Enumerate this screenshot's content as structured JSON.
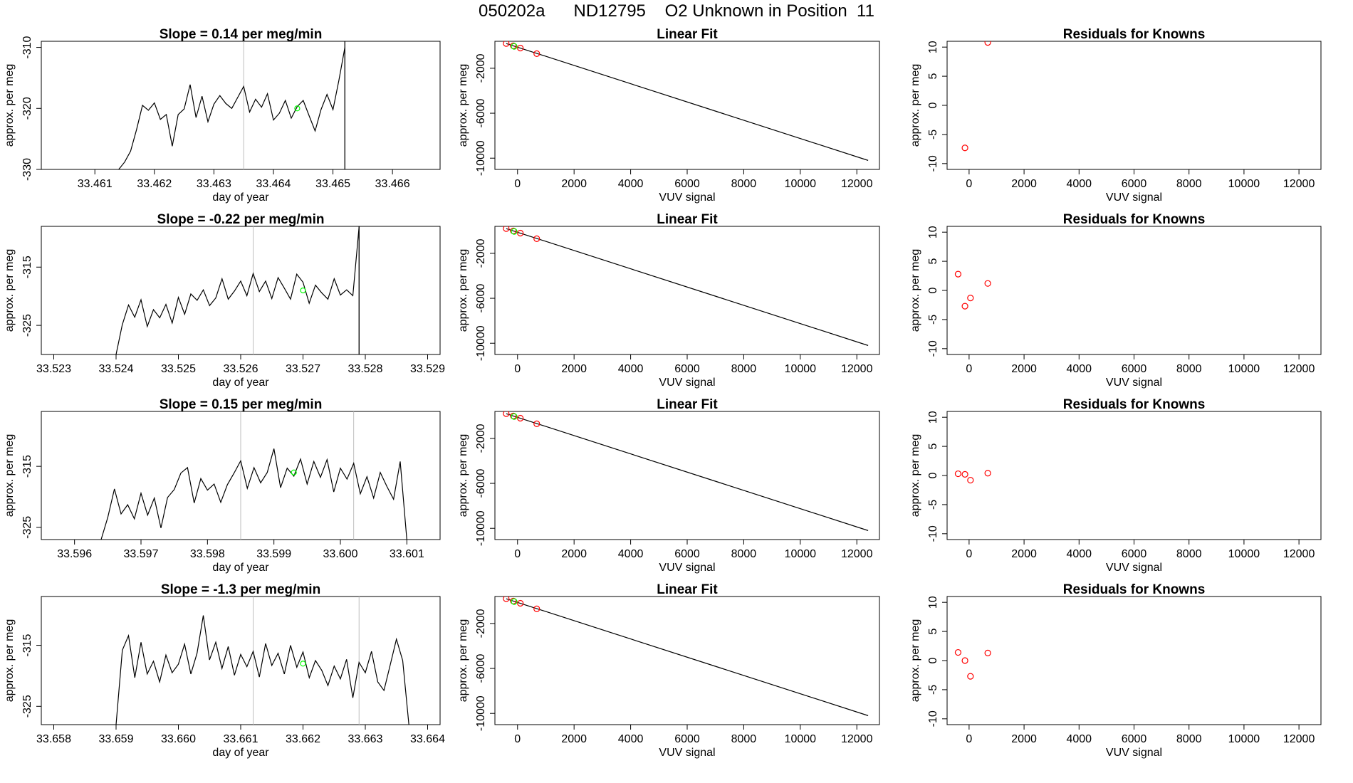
{
  "page_title": {
    "run": "050202a",
    "tank": "ND12795",
    "description": "O2 Unknown in Position  11"
  },
  "colors": {
    "line": "#000000",
    "vline": "#bebebe",
    "green_point": "#00ff00",
    "known_point": "#ff0000",
    "axis": "#000000"
  },
  "chart_data": [
    {
      "row": 0,
      "type": "line",
      "title": "Slope =  0.14  per meg/min",
      "xlabel": "day of year",
      "ylabel": "approx. per meg",
      "xlim": [
        33.4601,
        33.4668
      ],
      "ylim": [
        -330,
        -309
      ],
      "xticks": [
        33.461,
        33.462,
        33.463,
        33.464,
        33.465,
        33.466
      ],
      "xtick_labels": [
        "33.461",
        "33.462",
        "33.463",
        "33.464",
        "33.465",
        "33.466"
      ],
      "yticks": [
        -330,
        -320,
        -310
      ],
      "ytick_labels": [
        "-330",
        "-320",
        "-310"
      ],
      "gray_vlines": [
        33.4635
      ],
      "black_vlines": [
        33.4652
      ],
      "green_point": {
        "x": 33.4644,
        "y": -320
      },
      "series": [
        {
          "name": "signal",
          "x": [
            33.4614,
            33.4615,
            33.4616,
            33.4617,
            33.4618,
            33.4619,
            33.462,
            33.4621,
            33.4622,
            33.4623,
            33.4624,
            33.4625,
            33.4626,
            33.4627,
            33.4628,
            33.4629,
            33.463,
            33.4631,
            33.4632,
            33.4633,
            33.4634,
            33.4635,
            33.4636,
            33.4637,
            33.4638,
            33.4639,
            33.464,
            33.4641,
            33.4642,
            33.4643,
            33.4644,
            33.4645,
            33.4646,
            33.4647,
            33.4648,
            33.4649,
            33.465,
            33.4651,
            33.4652
          ],
          "values": [
            -330.0,
            -328.8,
            -327.0,
            -323.5,
            -319.5,
            -320.3,
            -319.1,
            -321.8,
            -321.0,
            -326.2,
            -321.0,
            -320.1,
            -316.1,
            -321.5,
            -318.0,
            -322.2,
            -319.3,
            -317.9,
            -319.2,
            -320.0,
            -318.2,
            -316.4,
            -320.6,
            -318.5,
            -319.8,
            -317.6,
            -321.9,
            -320.8,
            -318.7,
            -321.6,
            -319.7,
            -318.7,
            -321.2,
            -323.7,
            -320.2,
            -317.7,
            -320.2,
            -315.4,
            -310.0
          ]
        }
      ]
    },
    {
      "row": 0,
      "type": "line",
      "title": "Linear Fit",
      "xlabel": "VUV signal",
      "ylabel": "approx. per meg",
      "xlim": [
        -800,
        12800
      ],
      "ylim": [
        -11000,
        400
      ],
      "xticks": [
        0,
        2000,
        4000,
        6000,
        8000,
        10000,
        12000
      ],
      "xtick_labels": [
        "0",
        "2000",
        "4000",
        "6000",
        "8000",
        "10000",
        "12000"
      ],
      "yticks": [
        -10000,
        -6000,
        -2000
      ],
      "ytick_labels": [
        "-10000",
        "-6000",
        "-2000"
      ],
      "fit_line": {
        "x": [
          -400,
          12400
        ],
        "y": [
          200,
          -10200
        ]
      },
      "known_points": [
        {
          "x": -400,
          "y": 200
        },
        {
          "x": -150,
          "y": 0
        },
        {
          "x": 100,
          "y": -200
        },
        {
          "x": 680,
          "y": -700
        }
      ],
      "green_points": [
        {
          "x": -120,
          "y": -50
        }
      ]
    },
    {
      "row": 0,
      "type": "scatter",
      "title": "Residuals for Knowns",
      "xlabel": "VUV signal",
      "ylabel": "approx. per meg",
      "xlim": [
        -800,
        12800
      ],
      "ylim": [
        -11,
        11
      ],
      "xticks": [
        0,
        2000,
        4000,
        6000,
        8000,
        10000,
        12000
      ],
      "xtick_labels": [
        "0",
        "2000",
        "4000",
        "6000",
        "8000",
        "10000",
        "12000"
      ],
      "yticks": [
        -10,
        -5,
        0,
        5,
        10
      ],
      "ytick_labels": [
        "-10",
        "-5",
        "0",
        "5",
        "10"
      ],
      "points": [
        {
          "x": -150,
          "y": -7.3
        },
        {
          "x": 680,
          "y": 10.8
        }
      ]
    },
    {
      "row": 1,
      "type": "line",
      "title": "Slope =  -0.22  per meg/min",
      "xlabel": "day of year",
      "ylabel": "approx. per meg",
      "xlim": [
        33.5228,
        33.5292
      ],
      "ylim": [
        -330,
        -308
      ],
      "xticks": [
        33.523,
        33.524,
        33.525,
        33.526,
        33.527,
        33.528,
        33.529
      ],
      "xtick_labels": [
        "33.523",
        "33.524",
        "33.525",
        "33.526",
        "33.527",
        "33.528",
        "33.529"
      ],
      "yticks": [
        -325,
        -315
      ],
      "ytick_labels": [
        "-325",
        "-315"
      ],
      "gray_vlines": [
        33.5262
      ],
      "black_vlines": [
        33.5279
      ],
      "green_point": {
        "x": 33.527,
        "y": -319
      },
      "series": [
        {
          "name": "signal",
          "x": [
            33.524,
            33.5241,
            33.5242,
            33.5243,
            33.5244,
            33.5245,
            33.5246,
            33.5247,
            33.5248,
            33.5249,
            33.525,
            33.5251,
            33.5252,
            33.5253,
            33.5254,
            33.5255,
            33.5256,
            33.5257,
            33.5258,
            33.5259,
            33.526,
            33.5261,
            33.5262,
            33.5263,
            33.5264,
            33.5265,
            33.5266,
            33.5267,
            33.5268,
            33.5269,
            33.527,
            33.5271,
            33.5272,
            33.5273,
            33.5274,
            33.5275,
            33.5276,
            33.5277,
            33.5278,
            33.5279
          ],
          "values": [
            -330.0,
            -324.9,
            -321.5,
            -323.6,
            -320.6,
            -325.2,
            -322.3,
            -323.7,
            -321.4,
            -324.6,
            -320.2,
            -323.1,
            -319.6,
            -320.7,
            -318.9,
            -321.6,
            -320.3,
            -317.0,
            -320.5,
            -319.1,
            -317.4,
            -319.9,
            -316.1,
            -319.2,
            -317.4,
            -320.4,
            -316.8,
            -318.6,
            -320.5,
            -316.2,
            -317.6,
            -321.2,
            -318.1,
            -319.4,
            -320.5,
            -317.0,
            -319.8,
            -318.9,
            -319.9,
            -308.0
          ]
        }
      ]
    },
    {
      "row": 1,
      "type": "line",
      "title": "Linear Fit",
      "xlabel": "VUV signal",
      "ylabel": "approx. per meg",
      "xlim": [
        -800,
        12800
      ],
      "ylim": [
        -11000,
        400
      ],
      "xticks": [
        0,
        2000,
        4000,
        6000,
        8000,
        10000,
        12000
      ],
      "xtick_labels": [
        "0",
        "2000",
        "4000",
        "6000",
        "8000",
        "10000",
        "12000"
      ],
      "yticks": [
        -10000,
        -6000,
        -2000
      ],
      "ytick_labels": [
        "-10000",
        "-6000",
        "-2000"
      ],
      "fit_line": {
        "x": [
          -400,
          12400
        ],
        "y": [
          200,
          -10200
        ]
      },
      "known_points": [
        {
          "x": -400,
          "y": 200
        },
        {
          "x": -150,
          "y": 0
        },
        {
          "x": 100,
          "y": -200
        },
        {
          "x": 680,
          "y": -700
        }
      ],
      "green_points": [
        {
          "x": -120,
          "y": -50
        }
      ]
    },
    {
      "row": 1,
      "type": "scatter",
      "title": "Residuals for Knowns",
      "xlabel": "VUV signal",
      "ylabel": "approx. per meg",
      "xlim": [
        -800,
        12800
      ],
      "ylim": [
        -11,
        11
      ],
      "xticks": [
        0,
        2000,
        4000,
        6000,
        8000,
        10000,
        12000
      ],
      "xtick_labels": [
        "0",
        "2000",
        "4000",
        "6000",
        "8000",
        "10000",
        "12000"
      ],
      "yticks": [
        -10,
        -5,
        0,
        5,
        10
      ],
      "ytick_labels": [
        "-10",
        "-5",
        "0",
        "5",
        "10"
      ],
      "points": [
        {
          "x": -400,
          "y": 2.8
        },
        {
          "x": -150,
          "y": -2.7
        },
        {
          "x": 50,
          "y": -1.3
        },
        {
          "x": 680,
          "y": 1.2
        }
      ]
    },
    {
      "row": 2,
      "type": "line",
      "title": "Slope =  0.15  per meg/min",
      "xlabel": "day of year",
      "ylabel": "approx. per meg",
      "xlim": [
        33.5955,
        33.6015
      ],
      "ylim": [
        -327,
        -306
      ],
      "xticks": [
        33.596,
        33.597,
        33.598,
        33.599,
        33.6,
        33.601
      ],
      "xtick_labels": [
        "33.596",
        "33.597",
        "33.598",
        "33.599",
        "33.600",
        "33.601"
      ],
      "yticks": [
        -325,
        -315
      ],
      "ytick_labels": [
        "-325",
        "-315"
      ],
      "gray_vlines": [
        33.5985,
        33.6002
      ],
      "black_vlines": [],
      "green_point": {
        "x": 33.5993,
        "y": -316
      },
      "series": [
        {
          "name": "signal",
          "x": [
            33.5964,
            33.5965,
            33.5966,
            33.5967,
            33.5968,
            33.5969,
            33.597,
            33.5971,
            33.5972,
            33.5973,
            33.5974,
            33.5975,
            33.5976,
            33.5977,
            33.5978,
            33.5979,
            33.598,
            33.5981,
            33.5982,
            33.5983,
            33.5984,
            33.5985,
            33.5986,
            33.5987,
            33.5988,
            33.5989,
            33.599,
            33.5991,
            33.5992,
            33.5993,
            33.5994,
            33.5995,
            33.5996,
            33.5997,
            33.5998,
            33.5999,
            33.6,
            33.6001,
            33.6002,
            33.6003,
            33.6004,
            33.6005,
            33.6006,
            33.6007,
            33.6008,
            33.6009,
            33.601
          ],
          "values": [
            -327.0,
            -323.4,
            -318.7,
            -322.8,
            -321.3,
            -323.6,
            -319.4,
            -323.0,
            -320.2,
            -325.1,
            -320.1,
            -318.8,
            -316.1,
            -315.2,
            -321.0,
            -317.0,
            -318.9,
            -317.9,
            -320.9,
            -318.0,
            -316.1,
            -314.1,
            -318.6,
            -315.2,
            -317.7,
            -316.0,
            -312.1,
            -318.5,
            -315.3,
            -316.6,
            -313.8,
            -317.9,
            -314.2,
            -316.8,
            -313.9,
            -319.2,
            -315.3,
            -317.1,
            -314.5,
            -319.5,
            -316.7,
            -320.2,
            -316.0,
            -318.3,
            -320.4,
            -314.2,
            -327.0
          ]
        }
      ]
    },
    {
      "row": 2,
      "type": "line",
      "title": "Linear Fit",
      "xlabel": "VUV signal",
      "ylabel": "approx. per meg",
      "xlim": [
        -800,
        12800
      ],
      "ylim": [
        -11000,
        400
      ],
      "xticks": [
        0,
        2000,
        4000,
        6000,
        8000,
        10000,
        12000
      ],
      "xtick_labels": [
        "0",
        "2000",
        "4000",
        "6000",
        "8000",
        "10000",
        "12000"
      ],
      "yticks": [
        -10000,
        -6000,
        -2000
      ],
      "ytick_labels": [
        "-10000",
        "-6000",
        "-2000"
      ],
      "fit_line": {
        "x": [
          -400,
          12400
        ],
        "y": [
          200,
          -10200
        ]
      },
      "known_points": [
        {
          "x": -400,
          "y": 200
        },
        {
          "x": -150,
          "y": 0
        },
        {
          "x": 100,
          "y": -200
        },
        {
          "x": 680,
          "y": -700
        }
      ],
      "green_points": [
        {
          "x": -120,
          "y": -50
        }
      ]
    },
    {
      "row": 2,
      "type": "scatter",
      "title": "Residuals for Knowns",
      "xlabel": "VUV signal",
      "ylabel": "approx. per meg",
      "xlim": [
        -800,
        12800
      ],
      "ylim": [
        -11,
        11
      ],
      "xticks": [
        0,
        2000,
        4000,
        6000,
        8000,
        10000,
        12000
      ],
      "xtick_labels": [
        "0",
        "2000",
        "4000",
        "6000",
        "8000",
        "10000",
        "12000"
      ],
      "yticks": [
        -10,
        -5,
        0,
        5,
        10
      ],
      "ytick_labels": [
        "-10",
        "-5",
        "0",
        "5",
        "10"
      ],
      "points": [
        {
          "x": -400,
          "y": 0.3
        },
        {
          "x": -150,
          "y": 0.2
        },
        {
          "x": 50,
          "y": -0.8
        },
        {
          "x": 680,
          "y": 0.4
        }
      ]
    },
    {
      "row": 3,
      "type": "line",
      "title": "Slope =  -1.3  per meg/min",
      "xlabel": "day of year",
      "ylabel": "approx. per meg",
      "xlim": [
        33.6578,
        33.6642
      ],
      "ylim": [
        -328,
        -307
      ],
      "xticks": [
        33.658,
        33.659,
        33.66,
        33.661,
        33.662,
        33.663,
        33.664
      ],
      "xtick_labels": [
        "33.658",
        "33.659",
        "33.660",
        "33.661",
        "33.662",
        "33.663",
        "33.664"
      ],
      "yticks": [
        -325,
        -315
      ],
      "ytick_labels": [
        "-325",
        "-315"
      ],
      "gray_vlines": [
        33.6612,
        33.6629
      ],
      "black_vlines": [],
      "green_point": {
        "x": 33.662,
        "y": -318
      },
      "series": [
        {
          "name": "signal",
          "x": [
            33.659,
            33.6591,
            33.6592,
            33.6593,
            33.6594,
            33.6595,
            33.6596,
            33.6597,
            33.6598,
            33.6599,
            33.66,
            33.6601,
            33.6602,
            33.6603,
            33.6604,
            33.6605,
            33.6606,
            33.6607,
            33.6608,
            33.6609,
            33.661,
            33.6611,
            33.6612,
            33.6613,
            33.6614,
            33.6615,
            33.6616,
            33.6617,
            33.6618,
            33.6619,
            33.662,
            33.6621,
            33.6622,
            33.6623,
            33.6624,
            33.6625,
            33.6626,
            33.6627,
            33.6628,
            33.6629,
            33.663,
            33.6631,
            33.6632,
            33.6633,
            33.6634,
            33.6635,
            33.6636,
            33.6637
          ],
          "values": [
            -328.0,
            -315.8,
            -313.4,
            -320.3,
            -314.5,
            -319.7,
            -317.6,
            -321.0,
            -316.6,
            -319.5,
            -318.1,
            -314.8,
            -319.7,
            -316.3,
            -310.1,
            -317.4,
            -314.5,
            -318.8,
            -315.2,
            -319.9,
            -316.5,
            -318.5,
            -316.0,
            -320.2,
            -314.7,
            -318.3,
            -316.3,
            -319.7,
            -315.0,
            -318.6,
            -316.1,
            -320.3,
            -317.5,
            -319.1,
            -321.6,
            -318.4,
            -320.5,
            -317.3,
            -323.6,
            -317.8,
            -319.5,
            -316.0,
            -321.0,
            -322.4,
            -318.2,
            -314.0,
            -317.5,
            -328.0
          ]
        }
      ]
    },
    {
      "row": 3,
      "type": "line",
      "title": "Linear Fit",
      "xlabel": "VUV signal",
      "ylabel": "approx. per meg",
      "xlim": [
        -800,
        12800
      ],
      "ylim": [
        -11000,
        400
      ],
      "xticks": [
        0,
        2000,
        4000,
        6000,
        8000,
        10000,
        12000
      ],
      "xtick_labels": [
        "0",
        "2000",
        "4000",
        "6000",
        "8000",
        "10000",
        "12000"
      ],
      "yticks": [
        -10000,
        -6000,
        -2000
      ],
      "ytick_labels": [
        "-10000",
        "-6000",
        "-2000"
      ],
      "fit_line": {
        "x": [
          -400,
          12400
        ],
        "y": [
          200,
          -10200
        ]
      },
      "known_points": [
        {
          "x": -400,
          "y": 200
        },
        {
          "x": -150,
          "y": 0
        },
        {
          "x": 100,
          "y": -200
        },
        {
          "x": 680,
          "y": -700
        }
      ],
      "green_points": [
        {
          "x": -120,
          "y": -50
        }
      ]
    },
    {
      "row": 3,
      "type": "scatter",
      "title": "Residuals for Knowns",
      "xlabel": "VUV signal",
      "ylabel": "approx. per meg",
      "xlim": [
        -800,
        12800
      ],
      "ylim": [
        -11,
        11
      ],
      "xticks": [
        0,
        2000,
        4000,
        6000,
        8000,
        10000,
        12000
      ],
      "xtick_labels": [
        "0",
        "2000",
        "4000",
        "6000",
        "8000",
        "10000",
        "12000"
      ],
      "yticks": [
        -10,
        -5,
        0,
        5,
        10
      ],
      "ytick_labels": [
        "-10",
        "-5",
        "0",
        "5",
        "10"
      ],
      "points": [
        {
          "x": -400,
          "y": 1.4
        },
        {
          "x": -150,
          "y": 0.0
        },
        {
          "x": 50,
          "y": -2.7
        },
        {
          "x": 680,
          "y": 1.3
        }
      ]
    }
  ]
}
